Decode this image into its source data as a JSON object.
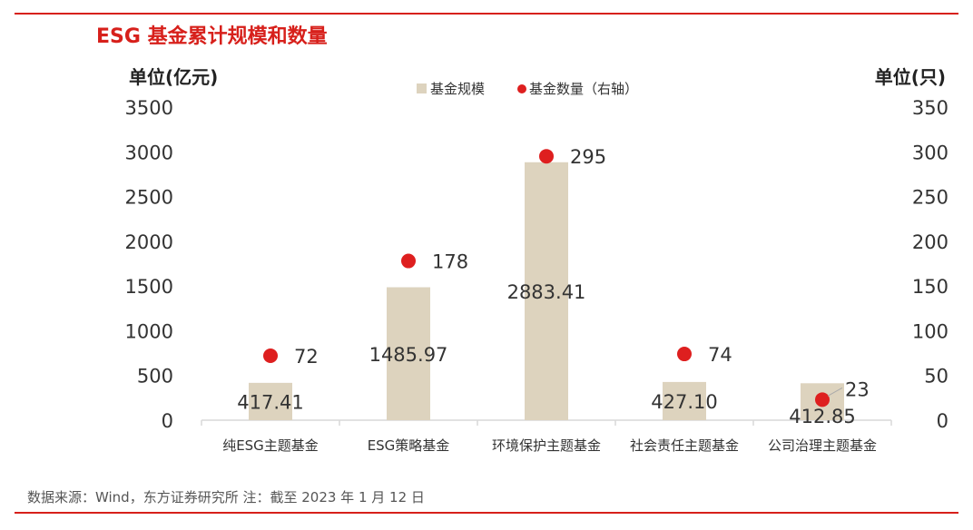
{
  "title": "ESG 基金累计规模和数量",
  "source": "数据来源：Wind，东方证券研究所 注：截至 2023 年 1 月 12 日",
  "colors": {
    "accent": "#d7201b",
    "bar": "#ddd3be",
    "dot": "#de1f1f",
    "axis": "#d9d9d9",
    "text": "#333333"
  },
  "chart_data": {
    "type": "bar",
    "categories": [
      "纯ESG主题基金",
      "ESG策略基金",
      "环境保护主题基金",
      "社会责任主题基金",
      "公司治理主题基金"
    ],
    "series": [
      {
        "name": "基金规模",
        "type": "bar",
        "axis": "left",
        "values": [
          417.41,
          1485.97,
          2883.41,
          427.1,
          412.85
        ],
        "labels": [
          "417.41",
          "1485.97",
          "2883.41",
          "427.10",
          "412.85"
        ]
      },
      {
        "name": "基金数量（右轴）",
        "type": "scatter",
        "axis": "right",
        "values": [
          72,
          178,
          295,
          74,
          23
        ],
        "labels": [
          "72",
          "178",
          "295",
          "74",
          "23"
        ]
      }
    ],
    "ylabel_left": "单位(亿元)",
    "ylabel_right": "单位(只)",
    "ylim_left": [
      0,
      3500
    ],
    "yticks_left": [
      "0",
      "500",
      "1000",
      "1500",
      "2000",
      "2500",
      "3000",
      "3500"
    ],
    "ylim_right": [
      0,
      350
    ],
    "yticks_right": [
      "0",
      "50",
      "100",
      "150",
      "200",
      "250",
      "300",
      "350"
    ],
    "legend_position": "top-center",
    "grid": false
  }
}
